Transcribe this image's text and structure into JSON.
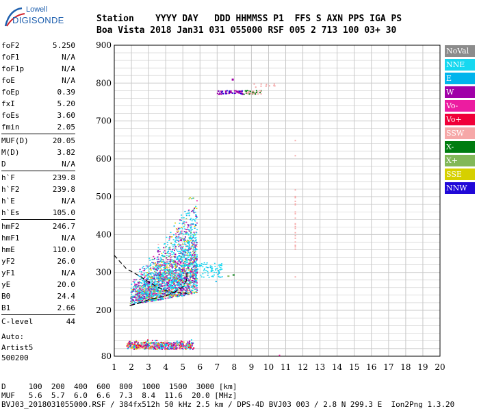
{
  "logo": {
    "line1": "Lowell",
    "line2": "DIGISONDE"
  },
  "header": {
    "line1": "Station    YYYY DAY   DDD HHMMSS P1  FFS S AXN PPS IGA PS",
    "line2": "Boa Vista 2018 Jan31 031 055000 RSF 005 2 713 100 03+ 30"
  },
  "params": [
    {
      "k": "foF2",
      "v": "5.250"
    },
    {
      "k": "foF1",
      "v": "N/A"
    },
    {
      "k": "foF1p",
      "v": "N/A"
    },
    {
      "k": "foE",
      "v": "N/A"
    },
    {
      "k": "foEp",
      "v": "0.39"
    },
    {
      "k": "fxI",
      "v": "5.20"
    },
    {
      "k": "foEs",
      "v": "3.60"
    },
    {
      "k": "fmin",
      "v": "2.05"
    },
    {
      "k": "MUF(D)",
      "v": "20.05"
    },
    {
      "k": "M(D)",
      "v": "3.82"
    },
    {
      "k": "D",
      "v": "N/A"
    },
    {
      "k": "h`F",
      "v": "239.8"
    },
    {
      "k": "h`F2",
      "v": "239.8"
    },
    {
      "k": "h`E",
      "v": "N/A"
    },
    {
      "k": "h`Es",
      "v": "105.0"
    },
    {
      "k": "hmF2",
      "v": "246.7"
    },
    {
      "k": "hmF1",
      "v": "N/A"
    },
    {
      "k": "hmE",
      "v": "110.0"
    },
    {
      "k": "yF2",
      "v": "26.0"
    },
    {
      "k": "yF1",
      "v": "N/A"
    },
    {
      "k": "yE",
      "v": "20.0"
    },
    {
      "k": "B0",
      "v": "24.4"
    },
    {
      "k": "B1",
      "v": "2.66"
    },
    {
      "k": "C-level",
      "v": "44"
    }
  ],
  "separators_after": [
    7,
    10,
    14,
    22
  ],
  "auto": {
    "line1": "Auto:",
    "line2": "Artist5",
    "line3": "500200"
  },
  "legend": [
    {
      "label": "NoVal",
      "color": "#8c8c8c"
    },
    {
      "label": "NNE",
      "color": "#16d8f0"
    },
    {
      "label": "E",
      "color": "#00b4ec"
    },
    {
      "label": "W",
      "color": "#a000a8"
    },
    {
      "label": "Vo-",
      "color": "#ec1ca0"
    },
    {
      "label": "Vo+",
      "color": "#f00038"
    },
    {
      "label": "SSW",
      "color": "#f6a8a8"
    },
    {
      "label": "X-",
      "color": "#007c10"
    },
    {
      "label": "X+",
      "color": "#82b858"
    },
    {
      "label": "SSE",
      "color": "#d6d000"
    },
    {
      "label": "NNW",
      "color": "#2008d8"
    }
  ],
  "bottom": {
    "line1": "D     100  200  400  600  800  1000  1500  3000 [km]",
    "line2": "MUF   5.6  5.7  6.0  6.6  7.3  8.4  11.6  20.0 [MHz]",
    "line3": "BVJ03_2018031055000.RSF / 384fx512h 50 kHz 2.5 km / DPS-4D BVJ03 003 / 2.8 N 299.3 E  Ion2Png 1.3.20"
  },
  "chart_data": {
    "type": "scatter",
    "xlim": [
      1,
      20
    ],
    "ylim": [
      80,
      900
    ],
    "x_ticks": [
      1,
      2,
      3,
      4,
      5,
      6,
      7,
      8,
      9,
      10,
      11,
      12,
      13,
      14,
      15,
      16,
      17,
      18,
      19,
      20
    ],
    "y_ticks": [
      80,
      200,
      300,
      400,
      500,
      600,
      700,
      800,
      900
    ],
    "grid": true,
    "x_unit": "MHz",
    "y_unit": "km",
    "echo_clusters": [
      {
        "name": "Es/E echo",
        "x_range": [
          1.7,
          5.6
        ],
        "y_range": [
          100,
          125
        ]
      },
      {
        "name": "F2 echo",
        "x_range": [
          1.8,
          6.3
        ],
        "y_range": [
          200,
          580
        ]
      },
      {
        "name": "F2 multi-hop",
        "x_range": [
          6.2,
          8.6
        ],
        "y_range": [
          250,
          340
        ]
      },
      {
        "name": "second-hop",
        "x_range": [
          7.4,
          9.8
        ],
        "y_range": [
          770,
          815
        ]
      },
      {
        "name": "spur",
        "x_range": [
          11.5,
          11.6
        ],
        "y_range": [
          290,
          650
        ]
      }
    ],
    "profile_curve": [
      [
        1.0,
        345
      ],
      [
        1.3,
        330
      ],
      [
        1.7,
        310
      ],
      [
        2.1,
        300
      ],
      [
        2.5,
        290
      ],
      [
        3.0,
        275
      ],
      [
        3.5,
        262
      ],
      [
        4.0,
        252
      ],
      [
        4.5,
        247
      ],
      [
        5.0,
        245
      ],
      [
        5.25,
        245
      ]
    ],
    "trace_curve": [
      [
        1.9,
        212
      ],
      [
        2.5,
        220
      ],
      [
        3.0,
        228
      ],
      [
        3.5,
        233
      ],
      [
        4.0,
        238
      ],
      [
        4.5,
        248
      ],
      [
        5.0,
        262
      ],
      [
        5.2,
        278
      ],
      [
        5.25,
        300
      ]
    ]
  }
}
